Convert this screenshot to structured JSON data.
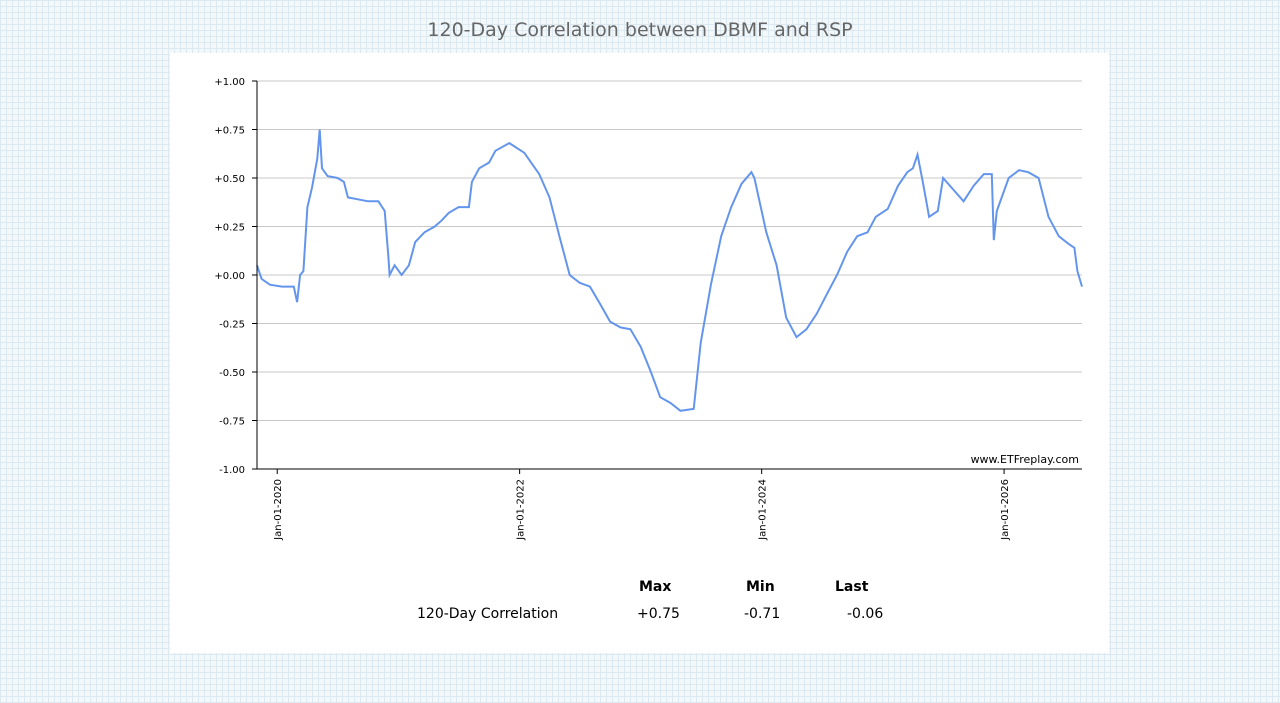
{
  "page": {
    "title": "120-Day Correlation between DBMF and RSP"
  },
  "chart_data": {
    "type": "line",
    "title": "120-Day Correlation between DBMF and RSP",
    "xlabel": "",
    "ylabel": "",
    "ylim": [
      -1.0,
      1.0
    ],
    "xlim": [
      "2019-11-01",
      "2026-08-24"
    ],
    "y_ticks": [
      "+1.00",
      "+0.75",
      "+0.50",
      "+0.25",
      "+0.00",
      "-0.25",
      "-0.50",
      "-0.75",
      "-1.00"
    ],
    "x_ticks": [
      "Jan-01-2020",
      "Jan-01-2022",
      "Jan-01-2024",
      "Jan-01-2026"
    ],
    "grid": "horizontal",
    "watermark": "www.ETFreplay.com",
    "line_color": "#6495ed",
    "series": [
      {
        "points": [
          [
            "2019-11-01",
            0.05
          ],
          [
            "2019-11-15",
            -0.02
          ],
          [
            "2019-12-10",
            -0.05
          ],
          [
            "2020-01-15",
            -0.06
          ],
          [
            "2020-02-20",
            -0.06
          ],
          [
            "2020-03-01",
            -0.14
          ],
          [
            "2020-03-10",
            0.0
          ],
          [
            "2020-03-20",
            0.02
          ],
          [
            "2020-04-01",
            0.35
          ],
          [
            "2020-04-15",
            0.45
          ],
          [
            "2020-05-01",
            0.6
          ],
          [
            "2020-05-08",
            0.75
          ],
          [
            "2020-05-15",
            0.55
          ],
          [
            "2020-06-01",
            0.51
          ],
          [
            "2020-07-01",
            0.5
          ],
          [
            "2020-07-20",
            0.48
          ],
          [
            "2020-08-01",
            0.4
          ],
          [
            "2020-10-01",
            0.38
          ],
          [
            "2020-11-01",
            0.38
          ],
          [
            "2020-11-20",
            0.33
          ],
          [
            "2020-12-01",
            0.1
          ],
          [
            "2020-12-05",
            0.0
          ],
          [
            "2020-12-20",
            0.05
          ],
          [
            "2021-01-10",
            0.0
          ],
          [
            "2021-02-01",
            0.05
          ],
          [
            "2021-02-20",
            0.17
          ],
          [
            "2021-03-20",
            0.22
          ],
          [
            "2021-04-20",
            0.25
          ],
          [
            "2021-05-10",
            0.28
          ],
          [
            "2021-06-01",
            0.32
          ],
          [
            "2021-07-01",
            0.35
          ],
          [
            "2021-08-01",
            0.35
          ],
          [
            "2021-08-10",
            0.48
          ],
          [
            "2021-09-01",
            0.55
          ],
          [
            "2021-10-01",
            0.58
          ],
          [
            "2021-10-20",
            0.64
          ],
          [
            "2021-12-01",
            0.68
          ],
          [
            "2022-01-15",
            0.63
          ],
          [
            "2022-03-01",
            0.52
          ],
          [
            "2022-04-01",
            0.4
          ],
          [
            "2022-05-01",
            0.2
          ],
          [
            "2022-06-01",
            0.0
          ],
          [
            "2022-07-01",
            -0.04
          ],
          [
            "2022-08-01",
            -0.06
          ],
          [
            "2022-09-01",
            -0.15
          ],
          [
            "2022-10-01",
            -0.24
          ],
          [
            "2022-11-01",
            -0.27
          ],
          [
            "2022-12-01",
            -0.28
          ],
          [
            "2023-01-01",
            -0.37
          ],
          [
            "2023-02-01",
            -0.5
          ],
          [
            "2023-03-01",
            -0.63
          ],
          [
            "2023-04-01",
            -0.66
          ],
          [
            "2023-05-01",
            -0.7
          ],
          [
            "2023-06-10",
            -0.69
          ],
          [
            "2023-07-01",
            -0.35
          ],
          [
            "2023-08-01",
            -0.05
          ],
          [
            "2023-09-01",
            0.2
          ],
          [
            "2023-10-01",
            0.35
          ],
          [
            "2023-11-01",
            0.47
          ],
          [
            "2023-12-01",
            0.53
          ],
          [
            "2023-12-10",
            0.5
          ],
          [
            "2024-01-15",
            0.22
          ],
          [
            "2024-02-15",
            0.05
          ],
          [
            "2024-03-15",
            -0.22
          ],
          [
            "2024-04-15",
            -0.32
          ],
          [
            "2024-05-15",
            -0.28
          ],
          [
            "2024-06-15",
            -0.2
          ],
          [
            "2024-07-15",
            -0.1
          ],
          [
            "2024-08-15",
            0.0
          ],
          [
            "2024-09-15",
            0.12
          ],
          [
            "2024-10-15",
            0.2
          ],
          [
            "2024-11-15",
            0.22
          ],
          [
            "2024-12-10",
            0.3
          ],
          [
            "2025-01-15",
            0.34
          ],
          [
            "2025-02-15",
            0.46
          ],
          [
            "2025-03-15",
            0.53
          ],
          [
            "2025-04-01",
            0.55
          ],
          [
            "2025-04-15",
            0.62
          ],
          [
            "2025-05-01",
            0.48
          ],
          [
            "2025-05-20",
            0.3
          ],
          [
            "2025-06-15",
            0.33
          ],
          [
            "2025-07-01",
            0.5
          ],
          [
            "2025-08-01",
            0.44
          ],
          [
            "2025-09-01",
            0.38
          ],
          [
            "2025-10-01",
            0.46
          ],
          [
            "2025-11-01",
            0.52
          ],
          [
            "2025-11-25",
            0.52
          ],
          [
            "2025-12-01",
            0.18
          ],
          [
            "2025-12-10",
            0.33
          ],
          [
            "2026-01-15",
            0.5
          ],
          [
            "2026-02-15",
            0.54
          ],
          [
            "2026-03-15",
            0.53
          ],
          [
            "2026-04-15",
            0.5
          ],
          [
            "2026-05-15",
            0.3
          ],
          [
            "2026-06-15",
            0.2
          ],
          [
            "2026-07-15",
            0.16
          ],
          [
            "2026-08-01",
            0.14
          ],
          [
            "2026-08-10",
            0.02
          ],
          [
            "2026-08-24",
            -0.06
          ]
        ]
      }
    ]
  },
  "stats": {
    "headers": [
      "Max",
      "Min",
      "Last"
    ],
    "rows": [
      {
        "label": "120-Day Correlation",
        "max": "+0.75",
        "min": "-0.71",
        "last": "-0.06"
      }
    ]
  }
}
